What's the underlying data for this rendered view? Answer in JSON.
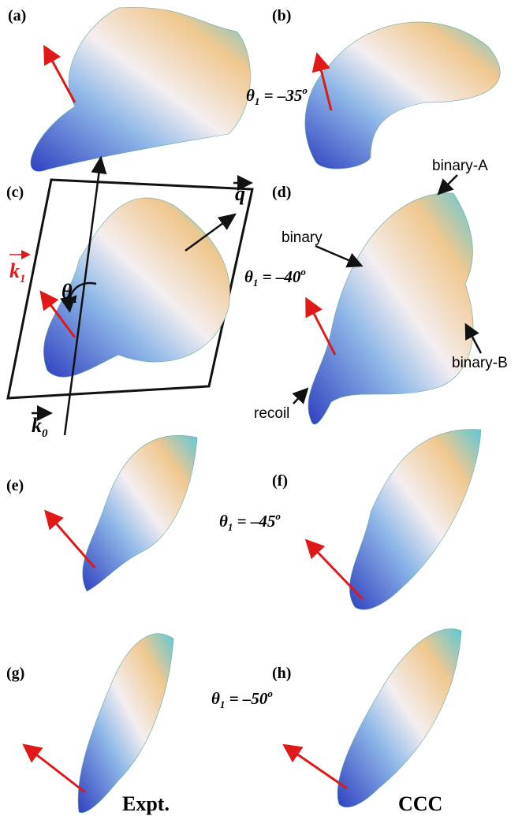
{
  "panels": [
    "(a)",
    "(b)",
    "(c)",
    "(d)",
    "(e)",
    "(f)",
    "(g)",
    "(h)"
  ],
  "angles": [
    {
      "symbol": "θ",
      "subscript": "1",
      "text": " = –35",
      "superscript": "o"
    },
    {
      "symbol": "θ",
      "subscript": "1",
      "text": " = –40",
      "superscript": "o"
    },
    {
      "symbol": "θ",
      "subscript": "1",
      "text": " = –45",
      "superscript": "o"
    },
    {
      "symbol": "θ",
      "subscript": "1",
      "text": " = –50",
      "superscript": "o"
    }
  ],
  "annotations": {
    "binary_a": "binary-A",
    "binary": "binary",
    "binary_b": "binary-B",
    "recoil": "recoil"
  },
  "vectors": {
    "k1": {
      "symbol": "k",
      "subscript": "1"
    },
    "k0": {
      "symbol": "k",
      "subscript": "0"
    },
    "q": "q",
    "theta": {
      "symbol": "θ",
      "subscript": "1"
    }
  },
  "column_labels": [
    "Expt.",
    "CCC"
  ]
}
